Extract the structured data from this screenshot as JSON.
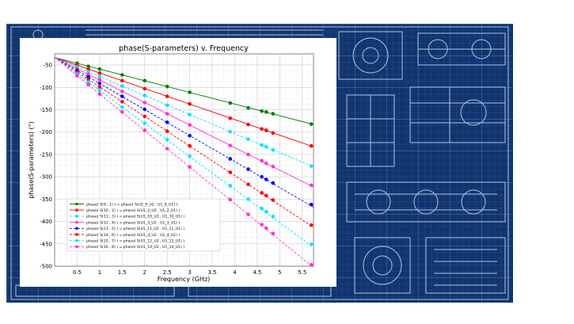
{
  "colors": {
    "blueprint_bg": "#12356f",
    "blueprint_line": "#c9dcf5"
  },
  "chart_data": {
    "type": "line",
    "title": "phase(S-parameters) v. Frequency",
    "xlabel": "Frequency (GHz)",
    "ylabel": "phase(S-parameters) (°)",
    "xlim": [
      0,
      5.75
    ],
    "ylim": [
      -500,
      -25
    ],
    "xticks": [
      "0.5",
      "1",
      "1.5",
      "2",
      "2.5",
      "3",
      "3.5",
      "4",
      "4.5",
      "5",
      "5.5"
    ],
    "xtick_values": [
      0.5,
      1,
      1.5,
      2,
      2.5,
      3,
      3.5,
      4,
      4.5,
      5,
      5.5
    ],
    "yticks": [
      "-50",
      "-100",
      "-150",
      "-200",
      "-250",
      "-300",
      "-350",
      "-400",
      "-450",
      "-500"
    ],
    "ytick_values": [
      -50,
      -100,
      -150,
      -200,
      -250,
      -300,
      -350,
      -400,
      -450,
      -500
    ],
    "grid": true,
    "legend_position": "bottom-left",
    "series": [
      {
        "name": "phase( S(9 , 1) ) = phase( S(U1_9_U2 , U1_9_U1) )",
        "color": "#008000",
        "dashed": false,
        "x0": 0,
        "y0": -33,
        "x1": 5.75,
        "y1": -183,
        "points_x": [
          0.5,
          0.75,
          1.0,
          1.5,
          2.0,
          2.5,
          3.0,
          3.9,
          4.3,
          4.6,
          4.7,
          4.85,
          5.7
        ],
        "points_y": [
          -46,
          -53,
          -59,
          -72,
          -85,
          -98,
          -111,
          -135,
          -146,
          -153,
          -155,
          -159,
          -182
        ]
      },
      {
        "name": "phase( S(10 , 2) ) = phase( S(U1_2_U2 , U1_2_U1) )",
        "color": "#ff0000",
        "dashed": false,
        "x0": 0,
        "y0": -33,
        "x1": 5.75,
        "y1": -233,
        "points_x": [
          0.5,
          0.75,
          1.0,
          1.5,
          2.0,
          2.5,
          3.0,
          3.9,
          4.3,
          4.6,
          4.7,
          4.85,
          5.7
        ],
        "points_y": [
          -50,
          -59,
          -68,
          -85,
          -103,
          -120,
          -137,
          -169,
          -183,
          -193,
          -196,
          -202,
          -231
        ]
      },
      {
        "name": "phase( S(11 , 3) ) = phase( S(U1_10_U2 , U1_10_U1) )",
        "color": "#00e5ff",
        "dashed": true,
        "x0": 0,
        "y0": -33,
        "x1": 5.75,
        "y1": -278,
        "points_x": [
          0.5,
          0.75,
          1.0,
          1.5,
          2.0,
          2.5,
          3.0,
          3.9,
          4.3,
          4.6,
          4.7,
          4.85,
          5.7
        ],
        "points_y": [
          -54,
          -65,
          -76,
          -97,
          -118,
          -140,
          -161,
          -199,
          -216,
          -229,
          -233,
          -240,
          -276
        ]
      },
      {
        "name": "phase( S(12 , 4) ) = phase( S(U1_3_U2 , U1_3_U1) )",
        "color": "#ff33cc",
        "dashed": false,
        "x0": 0,
        "y0": -33,
        "x1": 5.75,
        "y1": -323,
        "points_x": [
          0.5,
          0.75,
          1.0,
          1.5,
          2.0,
          2.5,
          3.0,
          3.9,
          4.3,
          4.6,
          4.7,
          4.85,
          5.7
        ],
        "points_y": [
          -58,
          -71,
          -83,
          -109,
          -134,
          -159,
          -184,
          -230,
          -250,
          -264,
          -270,
          -277,
          -319
        ]
      },
      {
        "name": "phase( S(13 , 5) ) = phase( S(U1_11_U2 , U1_11_U1) )",
        "color": "#0000ff",
        "dashed": true,
        "x0": 0,
        "y0": -33,
        "x1": 5.75,
        "y1": -368,
        "points_x": [
          0.5,
          0.75,
          1.0,
          1.5,
          2.0,
          2.5,
          3.0,
          3.9,
          4.3,
          4.6,
          4.7,
          4.85,
          5.7
        ],
        "points_y": [
          -62,
          -77,
          -91,
          -120,
          -149,
          -178,
          -208,
          -260,
          -283,
          -300,
          -306,
          -314,
          -362
        ]
      },
      {
        "name": "phase( S(14 , 6) ) = phase( S(U1_4_U2 , U1_4_U1) )",
        "color": "#ff0000",
        "dashed": true,
        "x0": 0,
        "y0": -33,
        "x1": 5.75,
        "y1": -413,
        "points_x": [
          0.5,
          0.75,
          1.0,
          1.5,
          2.0,
          2.5,
          3.0,
          3.9,
          4.3,
          4.6,
          4.7,
          4.85,
          5.7
        ],
        "points_y": [
          -66,
          -83,
          -99,
          -132,
          -165,
          -198,
          -231,
          -290,
          -317,
          -336,
          -342,
          -352,
          -408
        ]
      },
      {
        "name": "phase( S(15 , 7) ) = phase( S(U1_12_U2 , U1_12_U1) )",
        "color": "#00e5ff",
        "dashed": true,
        "x0": 0,
        "y0": -33,
        "x1": 5.75,
        "y1": -458,
        "points_x": [
          0.5,
          0.75,
          1.0,
          1.5,
          2.0,
          2.5,
          3.0,
          3.9,
          4.3,
          4.6,
          4.7,
          4.85,
          5.7
        ],
        "points_y": [
          -70,
          -88,
          -107,
          -144,
          -180,
          -217,
          -254,
          -320,
          -350,
          -371,
          -378,
          -389,
          -451
        ]
      },
      {
        "name": "phase( S(16 , 8) ) = phase( S(U1_14_U2 , U1_14_U1) )",
        "color": "#ff33cc",
        "dashed": true,
        "x0": 0,
        "y0": -33,
        "x1": 5.75,
        "y1": -503,
        "points_x": [
          0.5,
          0.75,
          1.0,
          1.5,
          2.0,
          2.5,
          3.0,
          3.9,
          4.3,
          4.6,
          4.7,
          4.85,
          5.7
        ],
        "points_y": [
          -74,
          -94,
          -115,
          -155,
          -196,
          -237,
          -278,
          -351,
          -384,
          -407,
          -415,
          -427,
          -497
        ]
      }
    ]
  }
}
